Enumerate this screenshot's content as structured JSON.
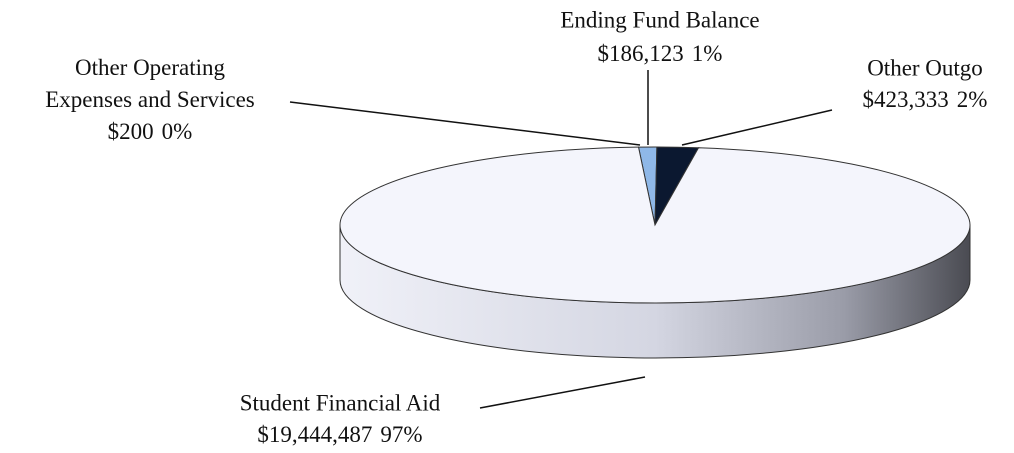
{
  "chart_data": {
    "type": "pie",
    "categories": [
      "Other Operating Expenses and Services",
      "Ending Fund Balance",
      "Other Outgo",
      "Student Financial Aid"
    ],
    "values": [
      200,
      186123,
      423333,
      19444487
    ],
    "value_labels": [
      "$200",
      "$186,123",
      "$423,333",
      "$19,444,487"
    ],
    "percents": [
      0,
      1,
      2,
      97
    ],
    "percent_labels": [
      "0%",
      "1%",
      "2%",
      "97%"
    ],
    "colors": [
      "#e8eefa",
      "#8fb8e8",
      "#0b1830",
      "#f4f5fc"
    ]
  }
}
